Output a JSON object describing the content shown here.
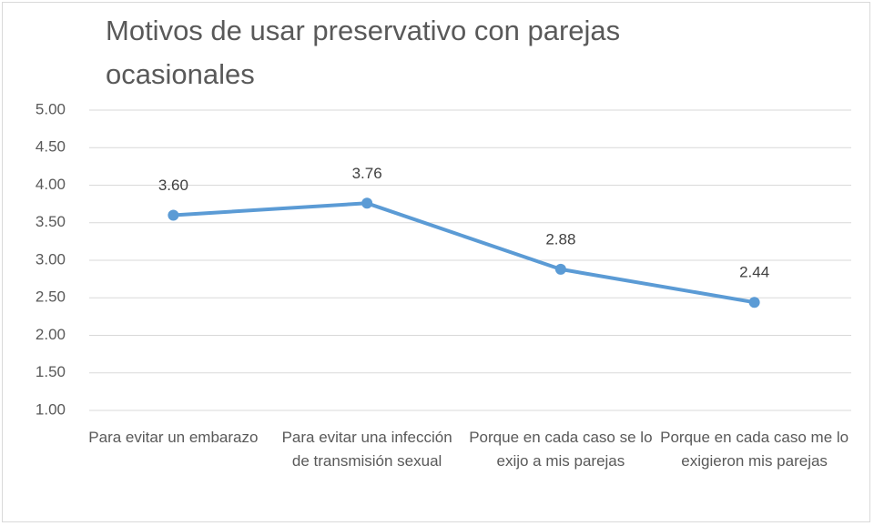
{
  "chart_data": {
    "type": "line",
    "title": "Motivos de usar preservativo con parejas ocasionales",
    "categories": [
      "Para evitar un embarazo",
      "Para evitar una infección de transmisión sexual",
      "Porque en cada caso se lo exijo a mis parejas",
      "Porque en cada caso me lo exigieron mis parejas"
    ],
    "series": [
      {
        "name": "Motivos",
        "color": "#5b9bd5",
        "values": [
          3.6,
          3.76,
          2.88,
          2.44
        ],
        "value_labels": [
          "3.60",
          "3.76",
          "2.88",
          "2.44"
        ]
      }
    ],
    "ylim": [
      1,
      5
    ],
    "yticks": [
      {
        "value": 1,
        "label": "1.00"
      },
      {
        "value": 1.5,
        "label": "1.50"
      },
      {
        "value": 2,
        "label": "2.00"
      },
      {
        "value": 2.5,
        "label": "2.50"
      },
      {
        "value": 3,
        "label": "3.00"
      },
      {
        "value": 3.5,
        "label": "3.50"
      },
      {
        "value": 4,
        "label": "4.00"
      },
      {
        "value": 4.5,
        "label": "4.50"
      },
      {
        "value": 5,
        "label": "5.00"
      }
    ],
    "grid": true
  }
}
